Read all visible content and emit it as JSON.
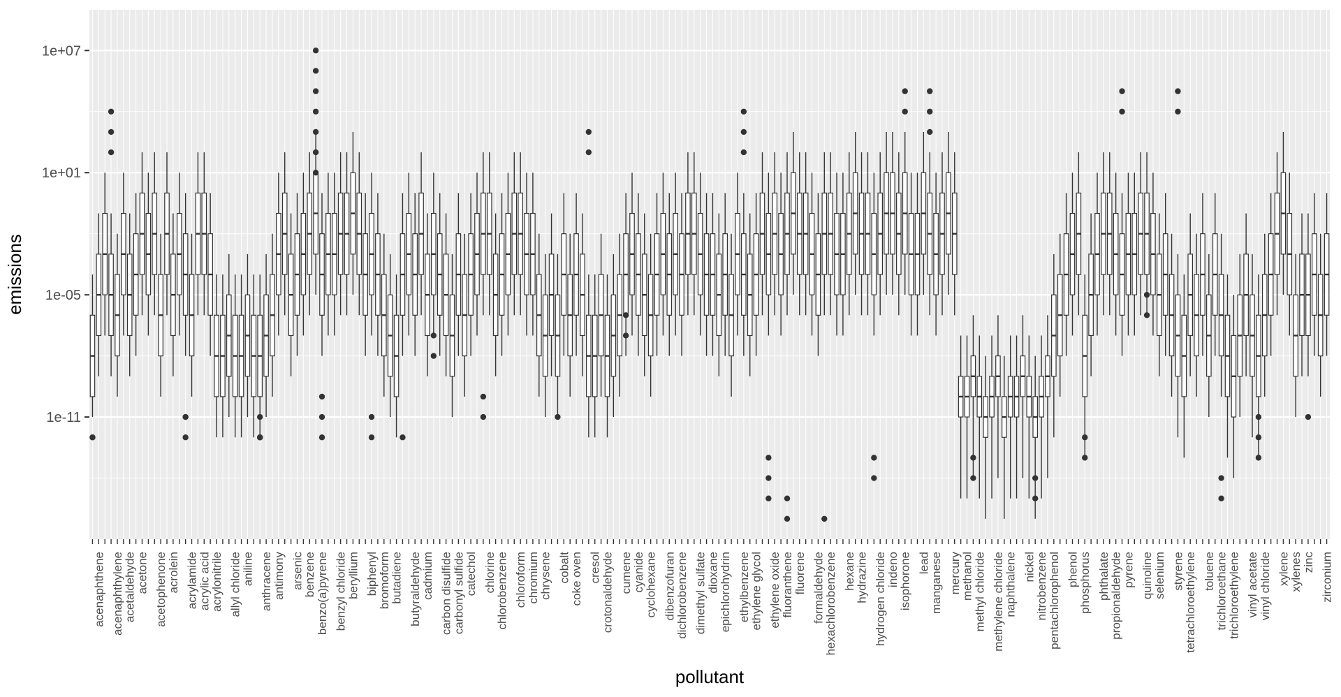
{
  "chart_data": {
    "type": "box",
    "title": "",
    "xlabel": "pollutant",
    "ylabel": "emissions",
    "y_scale": "log10",
    "ylim": [
      1e-17,
      1000000000.0
    ],
    "y_ticks": [
      10000000.0,
      10,
      1e-05,
      1e-11
    ],
    "y_tick_labels": [
      "1e+07",
      "1e+01",
      "1e-05",
      "1e-11"
    ],
    "grid": true,
    "legend": "none",
    "colors": {
      "panel_bg": "#ebebeb",
      "grid": "#ffffff",
      "box_line": "#333333",
      "box_fill": "#ffffff",
      "outlier": "#333333",
      "text": "#4d4d4d"
    },
    "category_count": 200,
    "category_labels": [
      "acenaphthene",
      "acenaphthylene",
      "acetaldehyde",
      "acetone",
      "acetophenone",
      "acrolein",
      "acrylamide",
      "acrylic acid",
      "acrylonitrile",
      "allyl chloride",
      "aniline",
      "anthracene",
      "antimony",
      "arsenic",
      "benzene",
      "benzo(a)pyrene",
      "benzyl chloride",
      "beryllium",
      "biphenyl",
      "bromoform",
      "butadiene",
      "butyraldehyde",
      "cadmium",
      "carbon disulfide",
      "carbonyl sulfide",
      "catechol",
      "chlorine",
      "chlorobenzene",
      "chloroform",
      "chromium",
      "chrysene",
      "cobalt",
      "coke oven",
      "cresol",
      "crotonaldehyde",
      "cumene",
      "cyanide",
      "cyclohexane",
      "dibenzofuran",
      "dichlorobenzene",
      "dimethyl sulfate",
      "dioxane",
      "epichlorohydrin",
      "ethylbenzene",
      "ethylene glycol",
      "ethylene oxide",
      "fluoranthene",
      "fluorene",
      "formaldehyde",
      "hexachlorobenzene",
      "hexane",
      "hydrazine",
      "hydrogen chloride",
      "indeno",
      "isophorone",
      "lead",
      "manganese",
      "mercury",
      "methanol",
      "methyl chloride",
      "methylene chloride",
      "naphthalene",
      "nickel",
      "nitrobenzene",
      "pentachlorophenol",
      "phenol",
      "phosphorus",
      "phthalate",
      "propionaldehyde",
      "pyrene",
      "quinoline",
      "selenium",
      "styrene",
      "tetrachloroethylene",
      "toluene",
      "trichloroethane",
      "trichloroethylene",
      "vinyl acetate",
      "vinyl chloride",
      "xylene",
      "xylenes",
      "zinc",
      "zirconium"
    ],
    "whisker_low_log10": [
      -11,
      -9,
      -7,
      -9,
      -10,
      -7,
      -9,
      -8,
      -6,
      -7,
      -6,
      -10,
      -6,
      -9,
      -7,
      -8,
      -10,
      -6,
      -6,
      -8,
      -12,
      -12,
      -11,
      -12,
      -12,
      -11,
      -12,
      -12,
      -11,
      -10,
      -7,
      -6,
      -9,
      -8,
      -7,
      -6,
      -5,
      -8,
      -7,
      -7,
      -6,
      -6,
      -5,
      -6,
      -8,
      -7,
      -8,
      -10,
      -11,
      -12,
      -8,
      -7,
      -8,
      -6,
      -9,
      -7,
      -8,
      -9,
      -11,
      -8,
      -10,
      -8,
      -7,
      -6,
      -6,
      -9,
      -8,
      -7,
      -6,
      -6,
      -7,
      -7,
      -10,
      -11,
      -9,
      -11,
      -8,
      -10,
      -8,
      -9,
      -12,
      -12,
      -10,
      -12,
      -11,
      -10,
      -8,
      -7,
      -8,
      -9,
      -10,
      -8,
      -7,
      -8,
      -7,
      -8,
      -6,
      -6,
      -7,
      -8,
      -8,
      -9,
      -8,
      -10,
      -7,
      -8,
      -9,
      -8,
      -6,
      -7,
      -6,
      -7,
      -6,
      -5,
      -6,
      -6,
      -7,
      -8,
      -6,
      -6,
      -7,
      -7,
      -6,
      -5,
      -6,
      -6,
      -7,
      -6,
      -5,
      -5,
      -6,
      -5,
      -7,
      -7,
      -5,
      -6,
      -7,
      -6,
      -5,
      -6,
      -15,
      -15,
      -14,
      -15,
      -16,
      -15,
      -14,
      -16,
      -15,
      -15,
      -14,
      -15,
      -16,
      -15,
      -14,
      -12,
      -10,
      -8,
      -7,
      -6,
      -13,
      -9,
      -7,
      -6,
      -6,
      -7,
      -8,
      -7,
      -7,
      -6,
      -6,
      -7,
      -9,
      -8,
      -10,
      -12,
      -13,
      -9,
      -10,
      -8,
      -11,
      -8,
      -10,
      -13,
      -14,
      -11,
      -9,
      -12,
      -13,
      -10,
      -8,
      -6,
      -5,
      -7,
      -11,
      -9,
      -9,
      -8,
      -10,
      -8
    ],
    "q1_log10": [
      -10,
      -7,
      -5,
      -7,
      -8,
      -5,
      -7,
      -6,
      -4,
      -5,
      -4,
      -8,
      -4,
      -7,
      -5,
      -6,
      -8,
      -4,
      -4,
      -6,
      -10,
      -10,
      -9,
      -10,
      -10,
      -9,
      -10,
      -10,
      -9,
      -8,
      -5,
      -4,
      -7,
      -6,
      -5,
      -4,
      -3,
      -6,
      -5,
      -5,
      -4,
      -4,
      -3,
      -4,
      -6,
      -5,
      -6,
      -8,
      -9,
      -10,
      -6,
      -5,
      -6,
      -4,
      -7,
      -5,
      -6,
      -7,
      -9,
      -6,
      -8,
      -6,
      -5,
      -4,
      -4,
      -7,
      -6,
      -5,
      -4,
      -4,
      -5,
      -5,
      -8,
      -9,
      -7,
      -9,
      -6,
      -8,
      -6,
      -7,
      -10,
      -10,
      -8,
      -10,
      -9,
      -8,
      -6,
      -5,
      -6,
      -7,
      -8,
      -6,
      -5,
      -6,
      -5,
      -6,
      -4,
      -4,
      -5,
      -6,
      -6,
      -7,
      -6,
      -8,
      -5,
      -6,
      -7,
      -6,
      -4,
      -5,
      -4,
      -5,
      -4,
      -3,
      -4,
      -4,
      -5,
      -6,
      -4,
      -4,
      -5,
      -5,
      -4,
      -3,
      -4,
      -4,
      -5,
      -4,
      -3,
      -3,
      -4,
      -3,
      -5,
      -5,
      -3,
      -4,
      -5,
      -4,
      -3,
      -4,
      -11,
      -11,
      -10,
      -11,
      -12,
      -11,
      -10,
      -12,
      -11,
      -11,
      -10,
      -11,
      -12,
      -11,
      -10,
      -9,
      -8,
      -6,
      -5,
      -4,
      -10,
      -7,
      -5,
      -4,
      -4,
      -5,
      -6,
      -5,
      -5,
      -4,
      -4,
      -5,
      -7,
      -6,
      -8,
      -9,
      -10,
      -7,
      -8,
      -6,
      -9,
      -6,
      -8,
      -10,
      -11,
      -9,
      -7,
      -9,
      -10,
      -8,
      -6,
      -4,
      -3,
      -5,
      -9,
      -7,
      -7,
      -6,
      -8,
      -6
    ],
    "median_log10": [
      -8,
      -5,
      -3,
      -5,
      -6,
      -3,
      -5,
      -4,
      -2,
      -3,
      -2,
      -6,
      -2,
      -5,
      -3,
      -4,
      -6,
      -2,
      -2,
      -4,
      -8,
      -8,
      -7,
      -8,
      -8,
      -7,
      -8,
      -8,
      -7,
      -6,
      -3,
      -2,
      -5,
      -4,
      -3,
      -2,
      -1,
      -4,
      -3,
      -3,
      -2,
      -2,
      -1,
      -2,
      -4,
      -3,
      -4,
      -6,
      -7,
      -8,
      -4,
      -3,
      -4,
      -2,
      -5,
      -3,
      -4,
      -5,
      -7,
      -4,
      -6,
      -4,
      -3,
      -2,
      -2,
      -5,
      -4,
      -3,
      -2,
      -2,
      -3,
      -3,
      -6,
      -7,
      -5,
      -7,
      -4,
      -6,
      -4,
      -5,
      -8,
      -8,
      -6,
      -8,
      -7,
      -6,
      -4,
      -3,
      -4,
      -5,
      -6,
      -4,
      -3,
      -4,
      -3,
      -4,
      -2,
      -2,
      -3,
      -4,
      -4,
      -5,
      -4,
      -6,
      -3,
      -4,
      -5,
      -4,
      -2,
      -3,
      -2,
      -3,
      -2,
      -1,
      -2,
      -2,
      -3,
      -4,
      -2,
      -2,
      -3,
      -3,
      -2,
      -1,
      -2,
      -2,
      -3,
      -2,
      -1,
      -1,
      -2,
      -1,
      -3,
      -3,
      -1,
      -2,
      -3,
      -2,
      -1,
      -2,
      -10,
      -10,
      -9,
      -10,
      -11,
      -10,
      -9,
      -11,
      -10,
      -10,
      -9,
      -10,
      -11,
      -10,
      -9,
      -7,
      -6,
      -4,
      -3,
      -2,
      -8,
      -5,
      -3,
      -2,
      -2,
      -3,
      -4,
      -3,
      -3,
      -2,
      -2,
      -3,
      -5,
      -4,
      -6,
      -7,
      -8,
      -5,
      -6,
      -4,
      -7,
      -4,
      -6,
      -8,
      -9,
      -7,
      -5,
      -7,
      -8,
      -6,
      -4,
      -2,
      -1,
      -3,
      -7,
      -5,
      -5,
      -4,
      -6,
      -4
    ],
    "q3_log10": [
      -6,
      -3,
      -1,
      -3,
      -4,
      -1,
      -3,
      -2,
      0,
      -1,
      0,
      -4,
      0,
      -3,
      -1,
      -2,
      -4,
      0,
      0,
      -2,
      -6,
      -6,
      -5,
      -6,
      -6,
      -5,
      -6,
      -6,
      -5,
      -4,
      -1,
      0,
      -3,
      -2,
      -1,
      0,
      1,
      -2,
      -1,
      -1,
      0,
      0,
      1,
      0,
      -2,
      -1,
      -2,
      -4,
      -5,
      -6,
      -2,
      -1,
      -2,
      0,
      -3,
      -1,
      -2,
      -3,
      -5,
      -2,
      -4,
      -2,
      -1,
      0,
      0,
      -3,
      -2,
      -1,
      0,
      0,
      -1,
      -1,
      -4,
      -5,
      -3,
      -5,
      -2,
      -4,
      -2,
      -3,
      -6,
      -6,
      -4,
      -6,
      -5,
      -4,
      -2,
      -1,
      -2,
      -3,
      -4,
      -2,
      -1,
      -2,
      -1,
      -2,
      0,
      0,
      -1,
      -2,
      -2,
      -3,
      -2,
      -4,
      -1,
      -2,
      -3,
      -2,
      0,
      -1,
      0,
      -1,
      0,
      1,
      0,
      0,
      -1,
      -2,
      0,
      0,
      -1,
      -1,
      0,
      1,
      0,
      0,
      -1,
      0,
      1,
      1,
      0,
      1,
      -1,
      -1,
      1,
      0,
      -1,
      0,
      1,
      0,
      -9,
      -9,
      -8,
      -9,
      -10,
      -9,
      -8,
      -10,
      -9,
      -9,
      -8,
      -9,
      -10,
      -9,
      -8,
      -5,
      -4,
      -2,
      -1,
      0,
      -6,
      -3,
      -1,
      0,
      0,
      -1,
      -2,
      -1,
      -1,
      0,
      0,
      -1,
      -3,
      -2,
      -4,
      -5,
      -6,
      -3,
      -4,
      -2,
      -5,
      -2,
      -4,
      -6,
      -7,
      -5,
      -3,
      -5,
      -6,
      -4,
      -2,
      0,
      1,
      -1,
      -5,
      -3,
      -3,
      -2,
      -4,
      -2
    ],
    "whisker_high_log10": [
      -4,
      -1,
      1,
      -1,
      -2,
      1,
      -1,
      0,
      2,
      1,
      2,
      -2,
      2,
      -1,
      1,
      0,
      -2,
      2,
      2,
      0,
      -4,
      -4,
      -3,
      -4,
      -4,
      -3,
      -4,
      -4,
      -3,
      -2,
      1,
      2,
      -1,
      0,
      1,
      2,
      3,
      0,
      1,
      1,
      2,
      2,
      3,
      2,
      0,
      1,
      0,
      -2,
      -3,
      -4,
      0,
      1,
      0,
      2,
      -1,
      1,
      0,
      -1,
      -3,
      0,
      -2,
      0,
      1,
      2,
      2,
      -1,
      0,
      1,
      2,
      2,
      1,
      1,
      -2,
      -3,
      -1,
      -3,
      0,
      -2,
      0,
      -1,
      -4,
      -4,
      -2,
      -4,
      -3,
      -2,
      0,
      1,
      0,
      -1,
      -2,
      0,
      1,
      0,
      1,
      0,
      2,
      2,
      1,
      0,
      0,
      -1,
      0,
      -2,
      1,
      0,
      -1,
      0,
      2,
      1,
      2,
      1,
      2,
      3,
      2,
      2,
      1,
      0,
      2,
      2,
      1,
      1,
      2,
      3,
      2,
      2,
      1,
      2,
      3,
      3,
      2,
      3,
      1,
      1,
      3,
      2,
      1,
      2,
      3,
      2,
      -7,
      -7,
      -6,
      -7,
      -8,
      -7,
      -6,
      -8,
      -7,
      -7,
      -6,
      -7,
      -8,
      -7,
      -6,
      -3,
      -2,
      0,
      1,
      2,
      -4,
      -1,
      1,
      2,
      2,
      1,
      0,
      1,
      1,
      2,
      2,
      1,
      -1,
      0,
      -2,
      -3,
      -4,
      -1,
      -2,
      0,
      -3,
      0,
      -2,
      -4,
      -5,
      -3,
      -1,
      -3,
      -4,
      -2,
      0,
      2,
      3,
      1,
      -3,
      -1,
      -1,
      0,
      -2,
      0
    ],
    "outliers": [
      {
        "i": 0,
        "log10": [
          -12,
          -12
        ]
      },
      {
        "i": 3,
        "log10": [
          2,
          3,
          4
        ]
      },
      {
        "i": 15,
        "log10": [
          -12,
          -11,
          -11
        ]
      },
      {
        "i": 27,
        "log10": [
          -12,
          -12,
          -12,
          -11
        ]
      },
      {
        "i": 36,
        "log10": [
          1,
          2,
          3,
          4,
          5,
          6,
          7
        ]
      },
      {
        "i": 37,
        "log10": [
          -12,
          -11,
          -10
        ]
      },
      {
        "i": 45,
        "log10": [
          -12,
          -11
        ]
      },
      {
        "i": 50,
        "log10": [
          -12
        ]
      },
      {
        "i": 55,
        "log10": [
          -7,
          -8
        ]
      },
      {
        "i": 63,
        "log10": [
          -10,
          -11
        ]
      },
      {
        "i": 75,
        "log10": [
          -11
        ]
      },
      {
        "i": 80,
        "log10": [
          2,
          3
        ]
      },
      {
        "i": 86,
        "log10": [
          -6,
          -7
        ]
      },
      {
        "i": 105,
        "log10": [
          2,
          3,
          4
        ]
      },
      {
        "i": 109,
        "log10": [
          -13,
          -14,
          -15
        ]
      },
      {
        "i": 112,
        "log10": [
          -15,
          -16
        ]
      },
      {
        "i": 118,
        "log10": [
          -16
        ]
      },
      {
        "i": 126,
        "log10": [
          -13,
          -14
        ]
      },
      {
        "i": 131,
        "log10": [
          4,
          5
        ]
      },
      {
        "i": 135,
        "log10": [
          3,
          4,
          5
        ]
      },
      {
        "i": 142,
        "log10": [
          -13,
          -14
        ]
      },
      {
        "i": 152,
        "log10": [
          -14,
          -15
        ]
      },
      {
        "i": 160,
        "log10": [
          -12,
          -13
        ]
      },
      {
        "i": 166,
        "log10": [
          4,
          5
        ]
      },
      {
        "i": 170,
        "log10": [
          -5,
          -6
        ]
      },
      {
        "i": 175,
        "log10": [
          4,
          5
        ]
      },
      {
        "i": 182,
        "log10": [
          -14,
          -15
        ]
      },
      {
        "i": 188,
        "log10": [
          -12,
          -13,
          -11
        ]
      },
      {
        "i": 196,
        "log10": [
          -11
        ]
      }
    ]
  }
}
